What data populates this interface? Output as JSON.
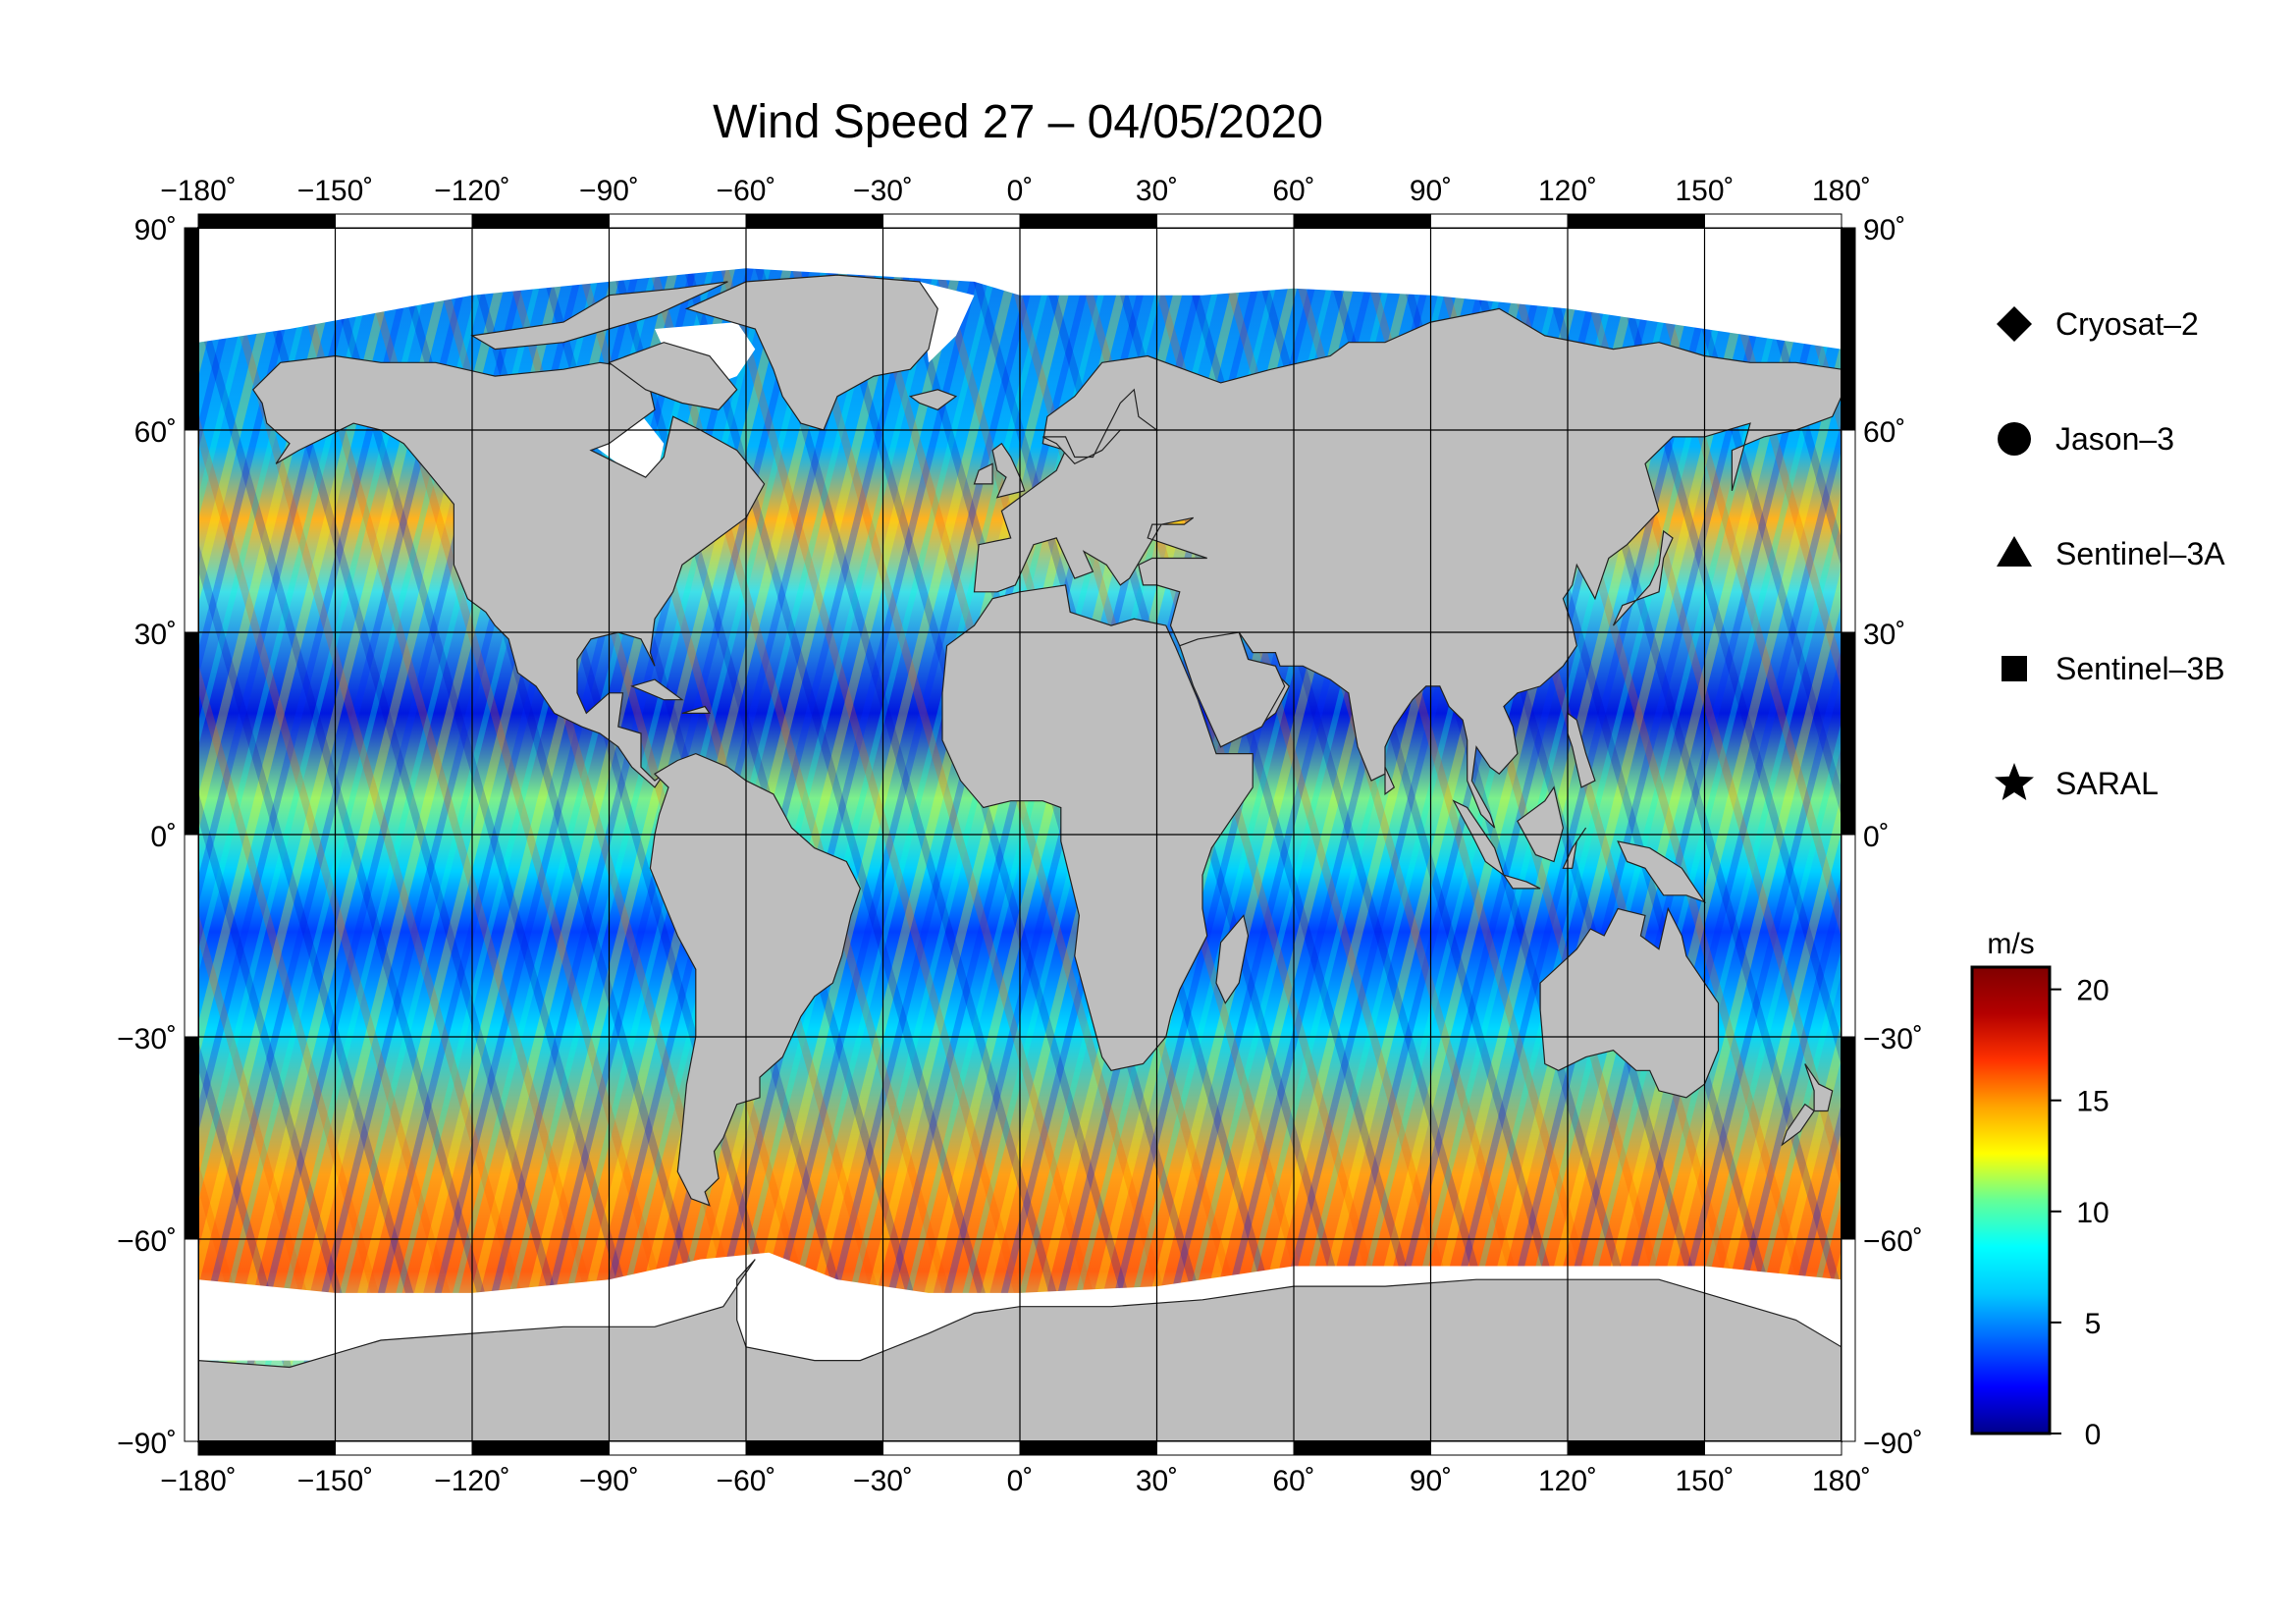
{
  "title": "Wind Speed 27 – 04/05/2020",
  "map": {
    "lon_range": [
      -180,
      180
    ],
    "lat_range": [
      -90,
      90
    ],
    "lon_ticks": [
      "−180˚",
      "−150˚",
      "−120˚",
      "−90˚",
      "−60˚",
      "−30˚",
      "0˚",
      "30˚",
      "60˚",
      "90˚",
      "120˚",
      "150˚",
      "180˚"
    ],
    "lat_ticks": [
      "90˚",
      "60˚",
      "30˚",
      "0˚",
      "−30˚",
      "−60˚",
      "−90˚"
    ],
    "lat_values": [
      90,
      60,
      30,
      0,
      -30,
      -60,
      -90
    ],
    "land_color": "#bebebe",
    "ice_color": "#ffffff",
    "grid": true
  },
  "legend": {
    "items": [
      {
        "symbol": "diamond",
        "label": "Cryosat–2"
      },
      {
        "symbol": "circle",
        "label": "Jason–3"
      },
      {
        "symbol": "triangle",
        "label": "Sentinel–3A"
      },
      {
        "symbol": "square",
        "label": "Sentinel–3B"
      },
      {
        "symbol": "star",
        "label": "SARAL"
      }
    ]
  },
  "colorbar": {
    "unit": "m/s",
    "range": [
      0,
      21
    ],
    "ticks": [
      {
        "value": 20,
        "label": "20"
      },
      {
        "value": 15,
        "label": "15"
      },
      {
        "value": 10,
        "label": "10"
      },
      {
        "value": 5,
        "label": "5"
      },
      {
        "value": 0,
        "label": "0"
      }
    ],
    "colors": [
      "#00008b",
      "#0000ff",
      "#0064ff",
      "#00c8ff",
      "#00ffff",
      "#64ff96",
      "#ffff00",
      "#ffa500",
      "#ff3200",
      "#b40000",
      "#800000"
    ]
  }
}
